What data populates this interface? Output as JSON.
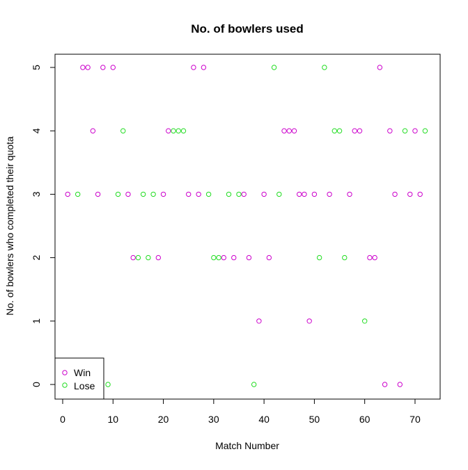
{
  "chart_data": {
    "type": "scatter",
    "title": "No. of bowlers used",
    "xlabel": "Match Number",
    "ylabel": "No. of bowlers who completed their quota",
    "xlim": [
      0,
      75
    ],
    "ylim": [
      0,
      5
    ],
    "x_ticks": [
      0,
      10,
      20,
      30,
      40,
      50,
      60,
      70
    ],
    "y_ticks": [
      0,
      1,
      2,
      3,
      4,
      5
    ],
    "grid": false,
    "legend_position": "bottom-left",
    "series": [
      {
        "name": "Win",
        "color": "#cc00cc",
        "marker": "open-circle",
        "points": [
          [
            1,
            3
          ],
          [
            4,
            5
          ],
          [
            5,
            5
          ],
          [
            6,
            4
          ],
          [
            7,
            3
          ],
          [
            8,
            5
          ],
          [
            10,
            5
          ],
          [
            13,
            3
          ],
          [
            14,
            2
          ],
          [
            19,
            2
          ],
          [
            20,
            3
          ],
          [
            21,
            4
          ],
          [
            25,
            3
          ],
          [
            26,
            5
          ],
          [
            27,
            3
          ],
          [
            28,
            5
          ],
          [
            32,
            2
          ],
          [
            34,
            2
          ],
          [
            36,
            3
          ],
          [
            37,
            2
          ],
          [
            39,
            1
          ],
          [
            40,
            3
          ],
          [
            41,
            2
          ],
          [
            44,
            4
          ],
          [
            45,
            4
          ],
          [
            46,
            4
          ],
          [
            47,
            3
          ],
          [
            48,
            3
          ],
          [
            49,
            1
          ],
          [
            50,
            3
          ],
          [
            53,
            3
          ],
          [
            57,
            3
          ],
          [
            58,
            4
          ],
          [
            59,
            4
          ],
          [
            61,
            2
          ],
          [
            62,
            2
          ],
          [
            63,
            5
          ],
          [
            64,
            0
          ],
          [
            65,
            4
          ],
          [
            66,
            3
          ],
          [
            67,
            0
          ],
          [
            69,
            3
          ],
          [
            70,
            4
          ],
          [
            71,
            3
          ]
        ]
      },
      {
        "name": "Lose",
        "color": "#22dd22",
        "marker": "open-circle",
        "points": [
          [
            3,
            3
          ],
          [
            9,
            0
          ],
          [
            11,
            3
          ],
          [
            12,
            4
          ],
          [
            15,
            2
          ],
          [
            16,
            3
          ],
          [
            17,
            2
          ],
          [
            18,
            3
          ],
          [
            22,
            4
          ],
          [
            23,
            4
          ],
          [
            24,
            4
          ],
          [
            29,
            3
          ],
          [
            30,
            2
          ],
          [
            31,
            2
          ],
          [
            33,
            3
          ],
          [
            35,
            3
          ],
          [
            38,
            0
          ],
          [
            42,
            5
          ],
          [
            43,
            3
          ],
          [
            51,
            2
          ],
          [
            52,
            5
          ],
          [
            54,
            4
          ],
          [
            55,
            4
          ],
          [
            56,
            2
          ],
          [
            60,
            1
          ],
          [
            68,
            4
          ],
          [
            72,
            4
          ]
        ]
      }
    ]
  }
}
